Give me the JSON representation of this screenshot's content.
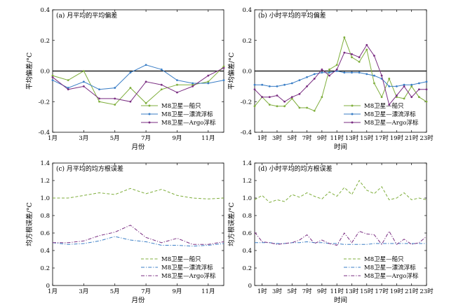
{
  "colors": {
    "ship": "#7fae3c",
    "drifter": "#3a7ec6",
    "argo": "#7a2e82",
    "zero_line": "#000000"
  },
  "chart_data": [
    {
      "id": "a",
      "type": "line",
      "title": "(a) 月平均的平均偏差",
      "xlabel": "月份",
      "ylabel": "平均偏差/°C",
      "xlim": [
        1,
        12
      ],
      "ylim": [
        -0.4,
        0.4
      ],
      "x": [
        1,
        2,
        3,
        4,
        5,
        6,
        7,
        8,
        9,
        10,
        11,
        12
      ],
      "xticks": [
        1,
        3,
        5,
        7,
        9,
        11
      ],
      "xticklabels": [
        "1月",
        "3月",
        "5月",
        "7月",
        "9月",
        "11月"
      ],
      "yticks": [
        -0.4,
        -0.2,
        0.0,
        0.2,
        0.4
      ],
      "yticklabels": [
        "-0.4",
        "-0.2",
        "0.0",
        "0.2",
        "0.4"
      ],
      "zero_line": true,
      "legend_position": "bottom-right",
      "series": [
        {
          "name": "M8卫星—船只",
          "key": "ship",
          "style": "solid",
          "marker": "circle",
          "values": [
            -0.03,
            -0.06,
            0.0,
            -0.2,
            -0.22,
            -0.11,
            -0.21,
            -0.12,
            -0.09,
            -0.09,
            -0.07,
            0.03
          ]
        },
        {
          "name": "M8卫星—漂流浮标",
          "key": "drifter",
          "style": "solid",
          "marker": "circle",
          "values": [
            -0.06,
            -0.11,
            -0.07,
            -0.12,
            -0.11,
            -0.01,
            0.04,
            0.01,
            -0.06,
            -0.08,
            -0.08,
            -0.06
          ]
        },
        {
          "name": "M8卫星—Argo浮标",
          "key": "argo",
          "style": "solid",
          "marker": "circle",
          "values": [
            -0.04,
            -0.12,
            -0.1,
            -0.18,
            -0.18,
            -0.2,
            -0.07,
            -0.09,
            -0.14,
            -0.1,
            -0.03,
            0.02
          ]
        }
      ]
    },
    {
      "id": "b",
      "type": "line",
      "title": "(b) 小时平均的平均偏差",
      "xlabel": "时间",
      "ylabel": "平均偏差/°C",
      "xlim": [
        0,
        23
      ],
      "ylim": [
        -0.4,
        0.4
      ],
      "x": [
        0,
        1,
        2,
        3,
        4,
        5,
        6,
        7,
        8,
        9,
        10,
        11,
        12,
        13,
        14,
        15,
        16,
        17,
        18,
        19,
        20,
        21,
        22,
        23
      ],
      "xticks": [
        1,
        3,
        5,
        7,
        9,
        11,
        13,
        15,
        17,
        19,
        21,
        23
      ],
      "xticklabels": [
        "1时",
        "3时",
        "5时",
        "7时",
        "9时",
        "11时",
        "13时",
        "15时",
        "17时",
        "19时",
        "21时",
        "23时"
      ],
      "yticks": [
        -0.4,
        -0.2,
        0.0,
        0.2,
        0.4
      ],
      "yticklabels": [
        "-0.4",
        "-0.2",
        "0.0",
        "0.2",
        "0.4"
      ],
      "zero_line": true,
      "legend_position": "bottom-right",
      "series": [
        {
          "name": "M8卫星—船只",
          "key": "ship",
          "style": "solid",
          "marker": "circle",
          "values": [
            -0.23,
            -0.17,
            -0.22,
            -0.23,
            -0.23,
            -0.18,
            -0.24,
            -0.24,
            -0.26,
            -0.17,
            0.01,
            0.04,
            0.22,
            0.09,
            0.06,
            0.14,
            -0.08,
            -0.17,
            -0.05,
            -0.17,
            -0.18,
            -0.1,
            -0.17,
            -0.2
          ]
        },
        {
          "name": "M8卫星—漂流浮标",
          "key": "drifter",
          "style": "solid",
          "marker": "circle",
          "values": [
            -0.09,
            -0.09,
            -0.1,
            -0.1,
            -0.09,
            -0.08,
            -0.06,
            -0.04,
            -0.02,
            -0.01,
            -0.01,
            0.0,
            -0.01,
            -0.01,
            -0.01,
            -0.02,
            -0.03,
            -0.05,
            -0.1,
            -0.1,
            -0.09,
            -0.09,
            -0.08,
            -0.07
          ]
        },
        {
          "name": "M8卫星—Argo浮标",
          "key": "argo",
          "style": "solid",
          "marker": "circle",
          "values": [
            -0.12,
            -0.17,
            -0.17,
            -0.16,
            -0.2,
            -0.17,
            -0.15,
            -0.1,
            -0.05,
            0.01,
            -0.03,
            0.01,
            0.12,
            0.11,
            0.09,
            0.17,
            0.1,
            -0.03,
            -0.22,
            -0.16,
            -0.1,
            -0.17,
            -0.12,
            -0.12
          ]
        }
      ]
    },
    {
      "id": "c",
      "type": "line",
      "title": "(c) 月平均的均方根误差",
      "xlabel": "月份",
      "ylabel": "均方根误差/°C",
      "xlim": [
        1,
        12
      ],
      "ylim": [
        0,
        1.4
      ],
      "x": [
        1,
        2,
        3,
        4,
        5,
        6,
        7,
        8,
        9,
        10,
        11,
        12
      ],
      "xticks": [
        1,
        3,
        5,
        7,
        9,
        11
      ],
      "xticklabels": [
        "1月",
        "3月",
        "5月",
        "7月",
        "9月",
        "11月"
      ],
      "yticks": [
        0,
        0.2,
        0.4,
        0.6,
        0.8,
        1.0,
        1.2,
        1.4
      ],
      "yticklabels": [
        "0",
        "0.2",
        "0.4",
        "0.6",
        "0.8",
        "1.0",
        "1.2",
        "1.4"
      ],
      "zero_line": false,
      "legend_position": "bottom-right",
      "series": [
        {
          "name": "M8卫星—船只",
          "key": "ship",
          "style": "dashed",
          "values": [
            1.0,
            1.0,
            1.03,
            1.06,
            1.04,
            1.11,
            1.05,
            1.1,
            1.03,
            1.0,
            0.99,
            1.0
          ]
        },
        {
          "name": "M8卫星—漂流浮标",
          "key": "drifter",
          "style": "dashdot",
          "values": [
            0.49,
            0.47,
            0.48,
            0.51,
            0.56,
            0.52,
            0.5,
            0.46,
            0.46,
            0.45,
            0.46,
            0.48
          ]
        },
        {
          "name": "M8卫星—Argo浮标",
          "key": "argo",
          "style": "dashdot",
          "values": [
            0.49,
            0.49,
            0.51,
            0.57,
            0.61,
            0.69,
            0.55,
            0.49,
            0.54,
            0.47,
            0.47,
            0.5
          ]
        }
      ]
    },
    {
      "id": "d",
      "type": "line",
      "title": "(d) 小时平均的均方根误差",
      "xlabel": "时间",
      "ylabel": "均方根误差/°C",
      "xlim": [
        0,
        23
      ],
      "ylim": [
        0,
        1.4
      ],
      "x": [
        0,
        1,
        2,
        3,
        4,
        5,
        6,
        7,
        8,
        9,
        10,
        11,
        12,
        13,
        14,
        15,
        16,
        17,
        18,
        19,
        20,
        21,
        22,
        23
      ],
      "xticks": [
        1,
        3,
        5,
        7,
        9,
        11,
        13,
        15,
        17,
        19,
        21,
        23
      ],
      "xticklabels": [
        "1时",
        "3时",
        "5时",
        "7时",
        "9时",
        "11时",
        "13时",
        "15时",
        "17时",
        "19时",
        "21时",
        "23时"
      ],
      "yticks": [
        0,
        0.2,
        0.4,
        0.6,
        0.8,
        1.0,
        1.2,
        1.4
      ],
      "yticklabels": [
        "0",
        "0.2",
        "0.4",
        "0.6",
        "0.8",
        "1.0",
        "1.2",
        "1.4"
      ],
      "zero_line": false,
      "legend_position": "bottom-right",
      "series": [
        {
          "name": "M8卫星—船只",
          "key": "ship",
          "style": "dashed",
          "values": [
            0.98,
            1.03,
            0.95,
            0.98,
            0.96,
            1.04,
            1.01,
            1.06,
            1.02,
            0.99,
            1.07,
            1.02,
            1.12,
            1.04,
            1.2,
            1.09,
            1.05,
            1.13,
            0.98,
            1.0,
            1.06,
            0.98,
            1.0,
            0.98
          ]
        },
        {
          "name": "M8卫星—漂流浮标",
          "key": "drifter",
          "style": "dashdot",
          "values": [
            0.49,
            0.49,
            0.49,
            0.48,
            0.48,
            0.49,
            0.49,
            0.5,
            0.49,
            0.49,
            0.48,
            0.48,
            0.47,
            0.47,
            0.47,
            0.47,
            0.48,
            0.48,
            0.48,
            0.48,
            0.48,
            0.48,
            0.48,
            0.48
          ]
        },
        {
          "name": "M8卫星—Argo浮标",
          "key": "argo",
          "style": "dashdot",
          "values": [
            0.61,
            0.5,
            0.49,
            0.47,
            0.48,
            0.49,
            0.52,
            0.58,
            0.48,
            0.52,
            0.48,
            0.46,
            0.6,
            0.49,
            0.62,
            0.59,
            0.58,
            0.47,
            0.62,
            0.47,
            0.53,
            0.47,
            0.49,
            0.56
          ]
        }
      ]
    }
  ]
}
